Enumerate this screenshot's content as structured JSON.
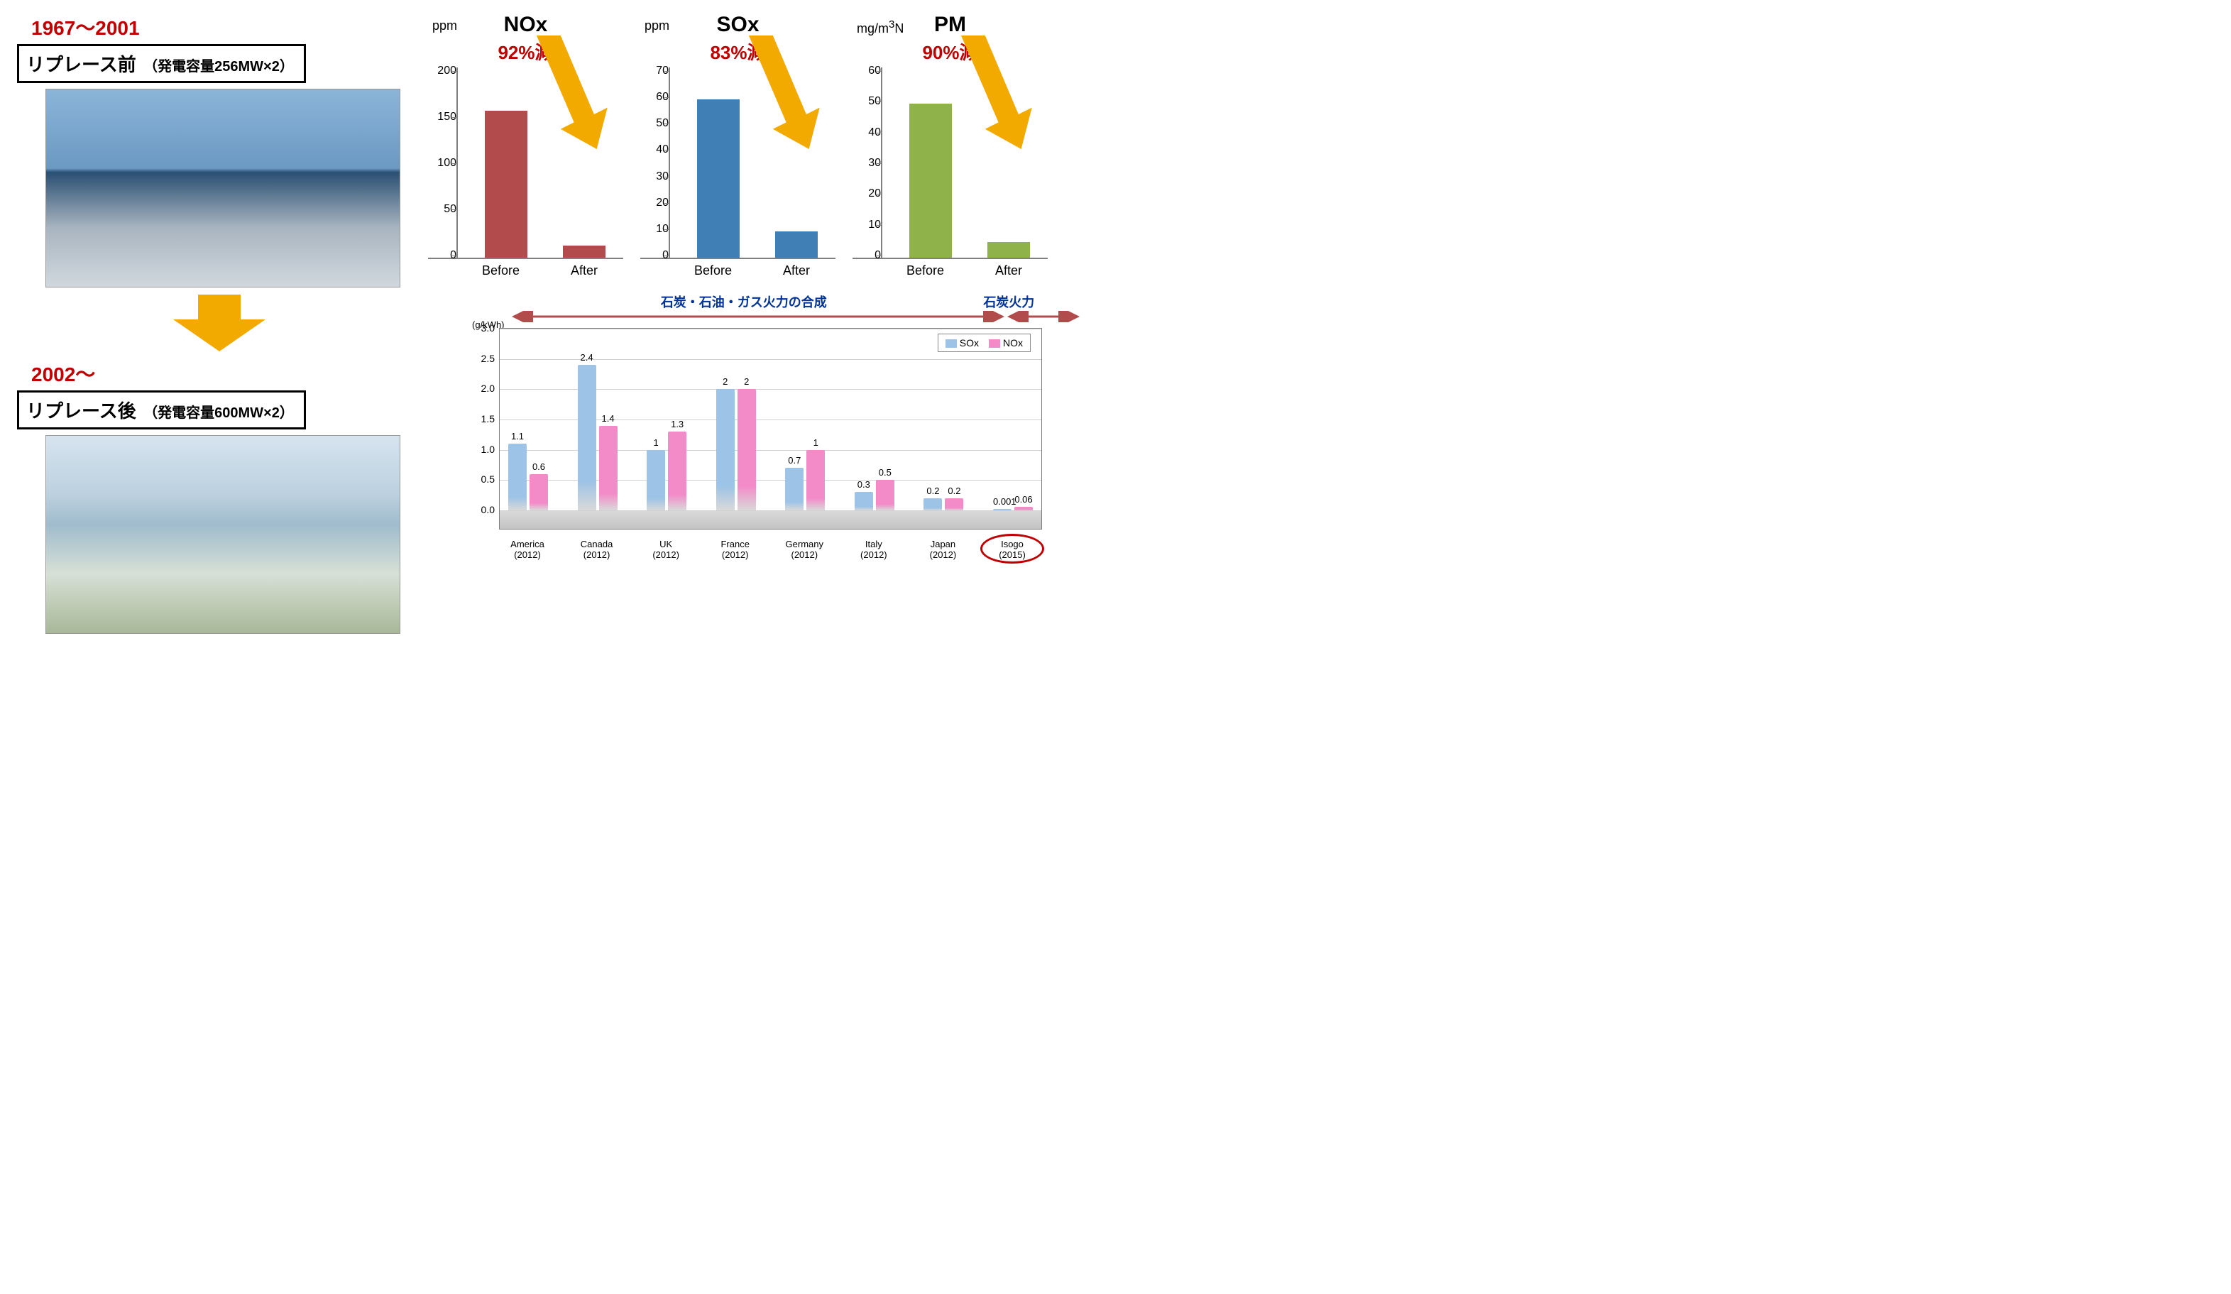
{
  "colors": {
    "red_text": "#c00000",
    "arrow_orange": "#f2a900",
    "grid": "#7f7f7f",
    "nox_bar": "#b24b4b",
    "sox_bar": "#3f7fb5",
    "pm_bar": "#8fb24a",
    "sox_series": "#9dc3e6",
    "nox_series": "#f38bc8",
    "blue_text": "#003399",
    "range_arrow": "#b24b4b"
  },
  "left": {
    "before": {
      "period": "1967～2001",
      "title_main": "リプレース前",
      "title_sub": "（発電容量256MW×2）"
    },
    "after": {
      "period": "2002～",
      "title_main": "リプレース後",
      "title_sub": "（発電容量600MW×2）"
    }
  },
  "mini": [
    {
      "key": "nox",
      "title": "NOx",
      "unit": "ppm",
      "reduction": "92%減",
      "ylim": [
        0,
        200
      ],
      "yticks": [
        0,
        50,
        100,
        150,
        200
      ],
      "xlabels": [
        "Before",
        "After"
      ],
      "values": [
        159,
        13
      ],
      "bar_color": "#b24b4b"
    },
    {
      "key": "sox",
      "title": "SOx",
      "unit": "ppm",
      "reduction": "83%減",
      "ylim": [
        0,
        70
      ],
      "yticks": [
        0,
        10,
        20,
        30,
        40,
        50,
        60,
        70
      ],
      "xlabels": [
        "Before",
        "After"
      ],
      "values": [
        60,
        10
      ],
      "bar_color": "#3f7fb5"
    },
    {
      "key": "pm",
      "title": "PM",
      "unit": "mg/m3N",
      "reduction": "90%減",
      "ylim": [
        0,
        60
      ],
      "yticks": [
        0,
        10,
        20,
        30,
        40,
        50,
        60
      ],
      "xlabels": [
        "Before",
        "After"
      ],
      "values": [
        50,
        5
      ],
      "bar_color": "#8fb24a"
    }
  ],
  "big": {
    "ylabel": "(g/kWh)",
    "ylim": [
      0,
      3.0
    ],
    "yticks": [
      0.0,
      0.5,
      1.0,
      1.5,
      2.0,
      2.5,
      3.0
    ],
    "header_left": "石炭・石油・ガス火力の合成",
    "header_right": "石炭火力",
    "legend": {
      "a_label": "SOx",
      "b_label": "NOx",
      "a_color": "#9dc3e6",
      "b_color": "#f38bc8"
    },
    "categories": [
      {
        "label": "America",
        "year": "(2012)",
        "sox": 1.1,
        "nox": 0.6
      },
      {
        "label": "Canada",
        "year": "(2012)",
        "sox": 2.4,
        "nox": 1.4
      },
      {
        "label": "UK",
        "year": "(2012)",
        "sox": 1.0,
        "nox": 1.3
      },
      {
        "label": "France",
        "year": "(2012)",
        "sox": 2.0,
        "nox": 2.0
      },
      {
        "label": "Germany",
        "year": "(2012)",
        "sox": 0.7,
        "nox": 1.0
      },
      {
        "label": "Italy",
        "year": "(2012)",
        "sox": 0.3,
        "nox": 0.5
      },
      {
        "label": "Japan",
        "year": "(2012)",
        "sox": 0.2,
        "nox": 0.2
      },
      {
        "label": "Isogo",
        "year": "(2015)",
        "sox": 0.001,
        "nox": 0.06,
        "circle": true
      }
    ]
  }
}
